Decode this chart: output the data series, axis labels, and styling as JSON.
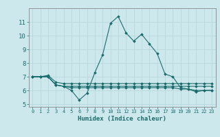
{
  "xlabel": "Humidex (Indice chaleur)",
  "ylabel": "",
  "xlim": [
    -0.5,
    23.5
  ],
  "ylim": [
    4.8,
    12.0
  ],
  "yticks": [
    5,
    6,
    7,
    8,
    9,
    10,
    11
  ],
  "xticks": [
    0,
    1,
    2,
    3,
    4,
    5,
    6,
    7,
    8,
    9,
    10,
    11,
    12,
    13,
    14,
    15,
    16,
    17,
    18,
    19,
    20,
    21,
    22,
    23
  ],
  "bg_color": "#cde8ec",
  "grid_color": "#b8d8dc",
  "line_color": "#1a6b6b",
  "series": [
    [
      7.0,
      7.0,
      7.0,
      6.4,
      6.3,
      6.0,
      5.3,
      5.8,
      7.3,
      8.6,
      10.9,
      11.4,
      10.2,
      9.6,
      10.1,
      9.4,
      8.7,
      7.2,
      7.0,
      6.2,
      6.1,
      5.9,
      6.0,
      6.0
    ],
    [
      7.0,
      7.0,
      7.1,
      6.6,
      6.5,
      6.5,
      6.5,
      6.5,
      6.5,
      6.5,
      6.5,
      6.5,
      6.5,
      6.5,
      6.5,
      6.5,
      6.5,
      6.5,
      6.5,
      6.5,
      6.5,
      6.5,
      6.5,
      6.5
    ],
    [
      7.0,
      7.0,
      7.0,
      6.4,
      6.3,
      6.3,
      6.3,
      6.3,
      6.3,
      6.3,
      6.3,
      6.3,
      6.3,
      6.3,
      6.3,
      6.3,
      6.3,
      6.3,
      6.3,
      6.3,
      6.3,
      6.3,
      6.3,
      6.3
    ],
    [
      7.0,
      7.0,
      7.0,
      6.4,
      6.3,
      6.2,
      6.2,
      6.2,
      6.2,
      6.2,
      6.2,
      6.2,
      6.2,
      6.2,
      6.2,
      6.2,
      6.2,
      6.2,
      6.2,
      6.1,
      6.1,
      6.0,
      6.0,
      6.0
    ]
  ]
}
